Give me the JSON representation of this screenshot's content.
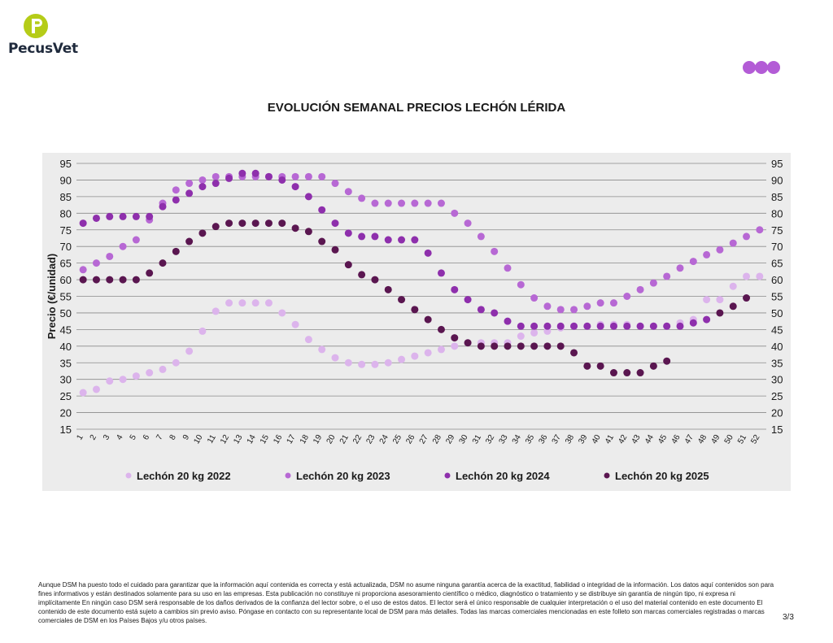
{
  "header": {
    "logo_text": "PecusVet",
    "logo_color": "#b5cc18",
    "brand_dot_color": "#b35cd6"
  },
  "footer": {
    "disclaimer": "Aunque DSM ha puesto todo el cuidado para garantizar que la información aquí contenida es correcta y está actualizada, DSM no asume ninguna garantía acerca de la exactitud, fiabilidad o integridad de la información. Los datos aquí contenidos son para fines informativos y están destinados solamente para su uso en las empresas. Esta publicación no constituye ni proporciona asesoramiento científico o médico, diagnóstico o tratamiento y se distribuye sin garantía de ningún tipo, ni expresa ni implícitamente En ningún caso DSM será responsable de los daños derivados de la confianza del lector sobre, o el uso de estos datos. El lector será el único responsable de cualquier interpretación o el uso del material contenido en este documento El contenido de este documento está sujeto a cambios sin previo aviso. Póngase en contacto con su representante local de DSM para más detalles. Todas las marcas comerciales mencionadas en este folleto son marcas comerciales registradas o marcas comerciales de DSM en los Países Bajos y/u otros países.",
    "page_number": "3/3"
  },
  "chart_data": {
    "type": "scatter",
    "title": "EVOLUCIÓN SEMANAL PRECIOS LECHÓN LÉRIDA",
    "xlabel": "",
    "ylabel": "Precio (€/unidad)",
    "ylim": [
      15,
      95
    ],
    "yticks": [
      15,
      20,
      25,
      30,
      35,
      40,
      45,
      50,
      55,
      60,
      65,
      70,
      75,
      80,
      85,
      90,
      95
    ],
    "grid": true,
    "secondary_y_axis": true,
    "legend_position": "bottom",
    "categories": [
      "1",
      "2",
      "3",
      "4",
      "5",
      "6",
      "7",
      "8",
      "9",
      "10",
      "11",
      "12",
      "13",
      "14",
      "15",
      "16",
      "17",
      "18",
      "19",
      "20",
      "21",
      "22",
      "23",
      "24",
      "25",
      "26",
      "27",
      "28",
      "29",
      "30",
      "31",
      "32",
      "33",
      "34",
      "35",
      "36",
      "37",
      "38",
      "39",
      "40",
      "41",
      "42",
      "43",
      "44",
      "45",
      "46",
      "47",
      "48",
      "49",
      "50",
      "51",
      "52"
    ],
    "series": [
      {
        "name": "Lechón 20 kg 2022",
        "color": "#dcb4ec",
        "values": [
          26,
          27,
          29.5,
          30,
          31,
          32,
          33,
          35,
          38.5,
          44.5,
          50.5,
          53,
          53,
          53,
          53,
          50,
          46.5,
          42,
          39,
          36.5,
          35,
          34.5,
          34.5,
          35,
          36,
          37,
          38,
          39,
          40,
          41,
          41,
          41,
          41,
          43,
          44,
          44.5,
          45.5,
          46,
          46,
          46.5,
          46.5,
          46.5,
          46,
          46,
          46,
          47,
          48,
          54,
          54,
          58,
          61,
          61
        ]
      },
      {
        "name": "Lechón 20 kg 2023",
        "color": "#b768d4",
        "values": [
          63,
          65,
          67,
          70,
          72,
          78,
          83,
          87,
          89,
          90,
          91,
          91,
          91,
          91,
          91,
          91,
          91,
          91,
          91,
          89,
          86.5,
          84.5,
          83,
          83,
          83,
          83,
          83,
          83,
          80,
          77,
          73,
          68.5,
          63.5,
          58.5,
          54.5,
          52,
          51,
          51,
          52,
          53,
          53,
          55,
          57,
          59,
          61,
          63.5,
          65.5,
          67.5,
          69,
          71,
          73,
          75
        ]
      },
      {
        "name": "Lechón 20 kg 2024",
        "color": "#8e2fac",
        "values": [
          77,
          78.5,
          79,
          79,
          79,
          79,
          82,
          84,
          86,
          88,
          89,
          90.5,
          92,
          92,
          91,
          90,
          88,
          85,
          81,
          77,
          74,
          73,
          73,
          72,
          72,
          72,
          68,
          62,
          57,
          54,
          51,
          50,
          47.5,
          46,
          46,
          46,
          46,
          46,
          46,
          46,
          46,
          46,
          46,
          46,
          46,
          46,
          47,
          48,
          null,
          null,
          null,
          null
        ]
      },
      {
        "name": "Lechón 20 kg 2025",
        "color": "#5a1650",
        "values": [
          60,
          60,
          60,
          60,
          60,
          62,
          65,
          68.5,
          71.5,
          74,
          76,
          77,
          77,
          77,
          77,
          77,
          75.5,
          74.5,
          71.5,
          69,
          64.5,
          61.5,
          60,
          57,
          54,
          51,
          48,
          45,
          42.5,
          41,
          40,
          40,
          40,
          40,
          40,
          40,
          40,
          38,
          34,
          34,
          32,
          32,
          32,
          34,
          35.5,
          null,
          null,
          null,
          50,
          52,
          54.5,
          null
        ]
      }
    ]
  }
}
